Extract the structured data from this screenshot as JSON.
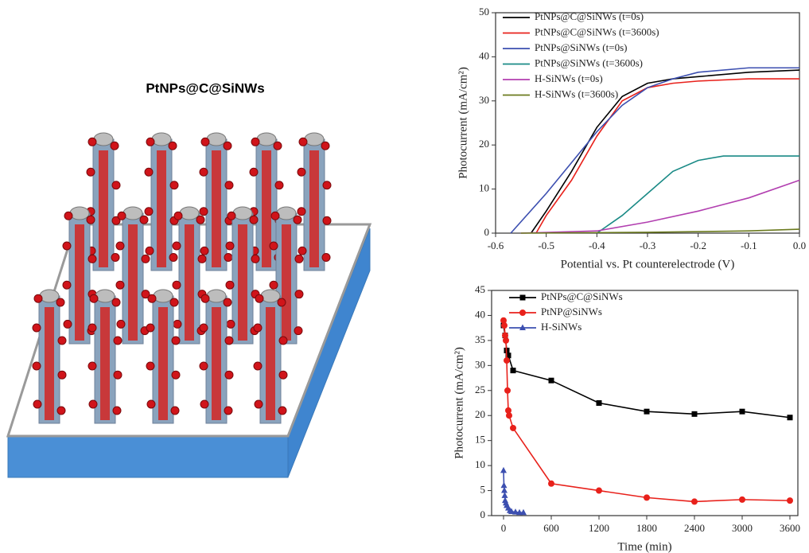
{
  "illustration": {
    "title": "PtNPs@C@SiNWs"
  },
  "chart_data": [
    {
      "type": "line",
      "x_label": "Potential vs. Pt counterelectrode (V)",
      "y_label": "Photocurrent (mA/cm²)",
      "xlim": [
        -0.6,
        0.0
      ],
      "xticks": [
        -0.6,
        -0.5,
        -0.4,
        -0.3,
        -0.2,
        -0.1,
        {
          "value": 0,
          "label": "0.0"
        }
      ],
      "ylim": [
        0,
        50
      ],
      "yticks": [
        0,
        10,
        20,
        30,
        40,
        50
      ],
      "legend": "upper-left",
      "series": [
        {
          "name": "PtNPs@C@SiNWs (t=0s)",
          "color": "#000000",
          "x": [
            -0.53,
            -0.5,
            -0.45,
            -0.4,
            -0.35,
            -0.3,
            -0.25,
            -0.2,
            -0.1,
            0
          ],
          "values": [
            0,
            5,
            14,
            24,
            31,
            34,
            35,
            35.5,
            36.5,
            37
          ]
        },
        {
          "name": "PtNPs@C@SiNWs (t=3600s)",
          "color": "#e8211b",
          "x": [
            -0.52,
            -0.5,
            -0.45,
            -0.4,
            -0.35,
            -0.3,
            -0.25,
            -0.2,
            -0.1,
            0
          ],
          "values": [
            0,
            4,
            12,
            22,
            30,
            33,
            34,
            34.5,
            35,
            35
          ]
        },
        {
          "name": "PtNPs@SiNWs (t=0s)",
          "color": "#3c4fb0",
          "x": [
            -0.57,
            -0.5,
            -0.45,
            -0.4,
            -0.35,
            -0.3,
            -0.25,
            -0.2,
            -0.1,
            0
          ],
          "values": [
            0,
            9,
            16,
            23,
            29,
            33,
            35,
            36.5,
            37.5,
            37.5
          ]
        },
        {
          "name": "PtNPs@SiNWs (t=3600s)",
          "color": "#1a8a86",
          "x": [
            -0.4,
            -0.35,
            -0.3,
            -0.25,
            -0.2,
            -0.15,
            -0.1,
            0
          ],
          "values": [
            0,
            4,
            9,
            14,
            16.5,
            17.5,
            17.5,
            17.5
          ]
        },
        {
          "name": "H-SiNWs (t=0s)",
          "color": "#b23fb0",
          "x": [
            -0.55,
            -0.4,
            -0.3,
            -0.2,
            -0.1,
            0
          ],
          "values": [
            0,
            0.5,
            2.5,
            5,
            8,
            12
          ]
        },
        {
          "name": "H-SiNWs (t=3600s)",
          "color": "#6b7a1e",
          "x": [
            -0.55,
            -0.3,
            -0.1,
            0
          ],
          "values": [
            0,
            0.2,
            0.5,
            0.9
          ]
        }
      ]
    },
    {
      "type": "line",
      "x_label": "Time (min)",
      "y_label": "Photocurrent (mA/cm²)",
      "xlim": [
        -150,
        3700
      ],
      "xticks": [
        0,
        600,
        1200,
        1800,
        2400,
        3000,
        3600
      ],
      "ylim": [
        0,
        45
      ],
      "yticks": [
        0,
        5,
        10,
        15,
        20,
        25,
        30,
        35,
        40,
        45
      ],
      "legend": "upper-left",
      "series": [
        {
          "name": "PtNPs@C@SiNWs",
          "color": "#000000",
          "marker": "square",
          "x": [
            0,
            20,
            40,
            60,
            120,
            600,
            1200,
            1800,
            2400,
            3000,
            3600
          ],
          "values": [
            38,
            36,
            33,
            32,
            29,
            27,
            22.5,
            20.8,
            20.3,
            20.8,
            19.6
          ]
        },
        {
          "name": "PtNP@SiNWs",
          "color": "#e8211b",
          "marker": "circle",
          "x": [
            0,
            10,
            20,
            30,
            40,
            50,
            60,
            70,
            120,
            600,
            1200,
            1800,
            2400,
            3000,
            3600
          ],
          "values": [
            39,
            38,
            36,
            35,
            31,
            25,
            21,
            20,
            17.5,
            6.4,
            5,
            3.6,
            2.8,
            3.2,
            3.0
          ]
        },
        {
          "name": "H-SiNWs",
          "color": "#3c4fb0",
          "marker": "triangle",
          "x": [
            0,
            5,
            10,
            15,
            20,
            30,
            40,
            60,
            80,
            100,
            150,
            200,
            250
          ],
          "values": [
            9,
            6,
            5,
            4,
            3,
            2.5,
            2,
            1.5,
            1,
            0.8,
            0.7,
            0.6,
            0.6
          ]
        }
      ]
    }
  ]
}
